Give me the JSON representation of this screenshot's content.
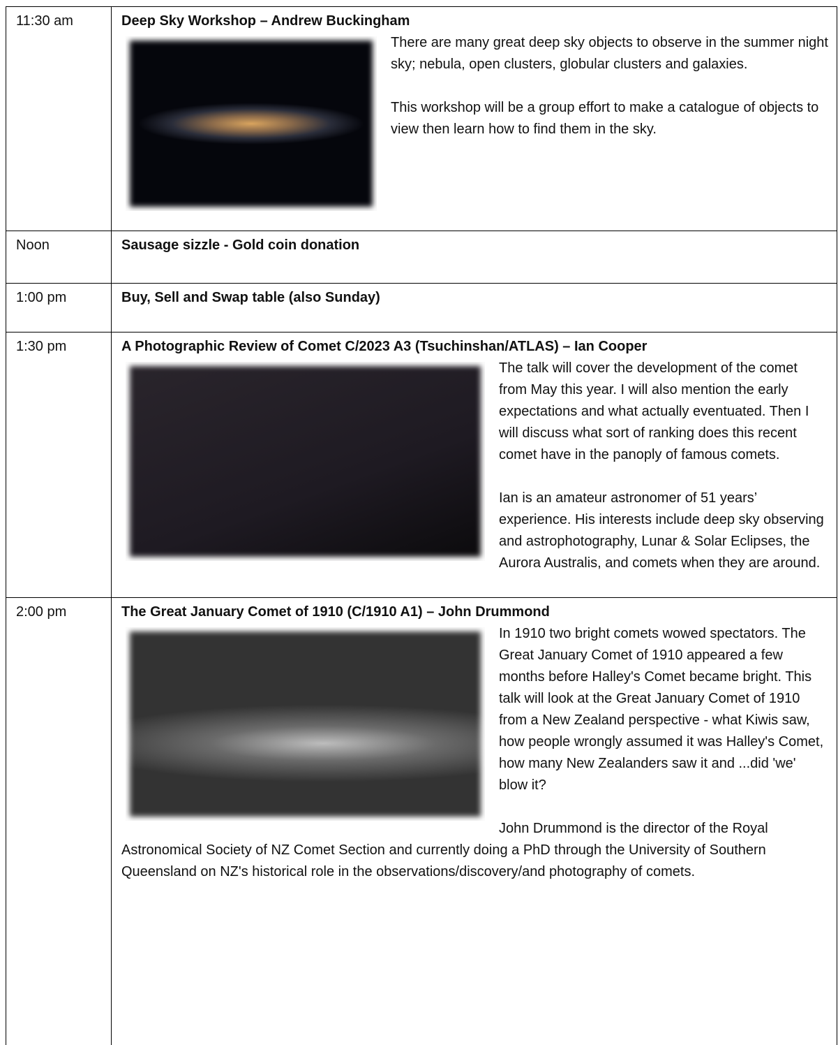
{
  "table": {
    "rows": [
      {
        "time": "11:30 am",
        "title": "Deep Sky Workshop – Andrew Buckingham",
        "paragraphs": [
          "There are many great deep sky objects to observe in the summer night sky; nebula, open clusters, globular clusters and galaxies.",
          "This workshop will be a group effort to make a catalogue of objects to view then learn how to find them in the sky."
        ]
      },
      {
        "time": "Noon",
        "title": "Sausage sizzle - Gold coin donation",
        "paragraphs": []
      },
      {
        "time": "1:00 pm",
        "title": "Buy, Sell and Swap table (also Sunday)",
        "paragraphs": []
      },
      {
        "time": "1:30 pm",
        "title": "A Photographic Review of Comet C/2023 A3 (Tsuchinshan/ATLAS) – Ian Cooper",
        "paragraphs": [
          "The talk will cover the development of the comet from May this year. I will also mention the early expectations and what actually eventuated. Then I will discuss what sort of ranking does this recent comet have in the panoply of famous comets.",
          "Ian is an amateur astronomer of 51 years’ experience. His interests include deep sky observing and astrophotography, Lunar & Solar Eclipses, the Aurora Australis, and comets when they are around."
        ]
      },
      {
        "time": "2:00 pm",
        "title": "The Great January Comet of 1910 (C/1910 A1) – John Drummond",
        "paragraphs": [
          "In 1910 two bright comets wowed spectators. The Great January Comet of 1910 appeared a few months before Halley's Comet became bright. This talk will look at the Great January Comet of 1910 from a New Zealand perspective - what Kiwis saw, how people wrongly assumed it was Halley's Comet, how many New Zealanders saw it and ...did 'we' blow it?",
          "John Drummond is the director of the Royal Astronomical Society of NZ Comet Section and currently doing a PhD through the University of Southern Queensland on NZ's historical role in the observations/discovery/and photography of comets."
        ]
      }
    ]
  }
}
